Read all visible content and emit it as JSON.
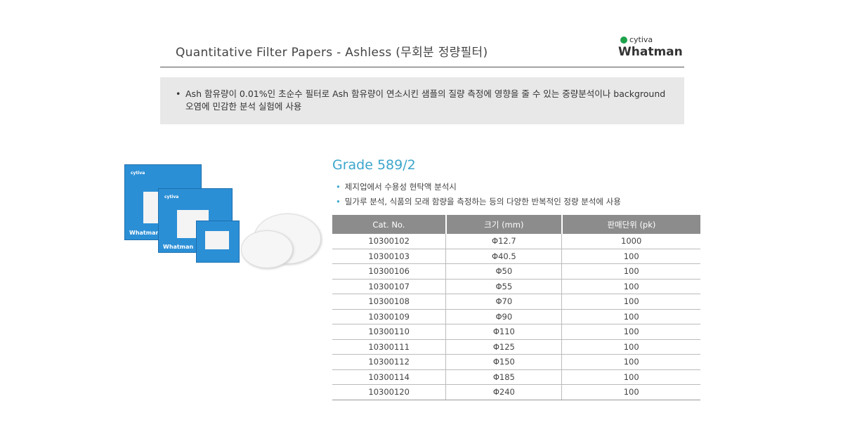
{
  "header": {
    "title": "Quantitative Filter Papers - Ashless (무회분 정량필터)",
    "logo_brand": "cytiva",
    "logo_name": "Whatman",
    "brand_color": "#1ea24a"
  },
  "note": {
    "text": "Ash 함유량이 0.01%인 초순수 필터로 Ash 함유량이 연소시킨 샘플의 질량 측정에 영향을 줄 수 있는 중량분석이나 background 오염에 민감한 분석 실험에 사용"
  },
  "product": {
    "image_alt": "Whatman cytiva filter paper boxes",
    "box_brand": "cytiva",
    "box_name": "Whatman"
  },
  "grade": {
    "title": "Grade 589/2",
    "bullets": [
      "제지업에서 수용성 현탁액 분석시",
      "밀가루 분석, 식품의 모래 함량을 측정하는 등의 다양한 반복적인 정량 분석에 사용"
    ]
  },
  "table": {
    "headers": [
      "Cat. No.",
      "크기 (mm)",
      "판매단위 (pk)"
    ],
    "rows": [
      [
        "10300102",
        "Φ12.7",
        "1000"
      ],
      [
        "10300103",
        "Φ40.5",
        "100"
      ],
      [
        "10300106",
        "Φ50",
        "100"
      ],
      [
        "10300107",
        "Φ55",
        "100"
      ],
      [
        "10300108",
        "Φ70",
        "100"
      ],
      [
        "10300109",
        "Φ90",
        "100"
      ],
      [
        "10300110",
        "Φ110",
        "100"
      ],
      [
        "10300111",
        "Φ125",
        "100"
      ],
      [
        "10300112",
        "Φ150",
        "100"
      ],
      [
        "10300114",
        "Φ185",
        "100"
      ],
      [
        "10300120",
        "Φ240",
        "100"
      ]
    ]
  },
  "colors": {
    "accent": "#3ba6cc",
    "header_bg": "#8c8c8c",
    "note_bg": "#e8e8e8",
    "box_blue": "#2b8fd6"
  }
}
